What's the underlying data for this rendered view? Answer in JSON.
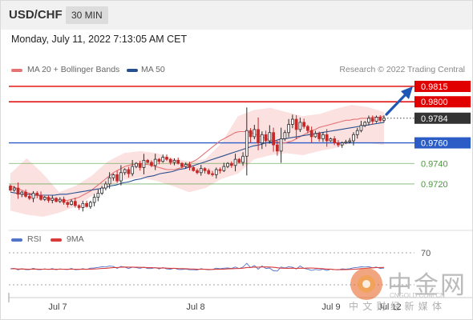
{
  "header": {
    "symbol": "USD/CHF",
    "timeframe": "30 MIN"
  },
  "datetime": "Monday, July 11, 2022 7:13:05 AM CET",
  "legend": {
    "ma20_label": "MA 20 + Bollinger Bands",
    "ma50_label": "MA 50",
    "credit": "Research © 2022 Trading Central"
  },
  "rsi_legend": {
    "rsi_label": "RSI",
    "ma9_label": "9MA"
  },
  "watermark": {
    "cn": "中金网",
    "url": "CNGOLD.COM.CN",
    "tagline": "中 文 财 经 新 媒 体"
  },
  "colors": {
    "up": "#2b2b2b",
    "down": "#c62828",
    "resistance": "#e00000",
    "pivot": "#2c5cc5",
    "support": "#4a9a3a",
    "ma20": "#e57373",
    "ma50": "#2a4f8f",
    "band_fill": "#fbe1e0",
    "rsi": "#4f74c8",
    "rsi_ma": "#d93a3a",
    "arrow": "#1f57b5"
  },
  "chart_data": {
    "type": "candlestick",
    "instrument": "USD/CHF",
    "timeframe": "30 MIN",
    "x_ticks": [
      "Jul 7",
      "Jul 8",
      "Jul 9",
      "Jul 12"
    ],
    "y_range": [
      0.9688,
      0.9822
    ],
    "levels": [
      {
        "value": 0.9815,
        "label": "0.9815",
        "kind": "resistance"
      },
      {
        "value": 0.98,
        "label": "0.9800",
        "kind": "resistance"
      },
      {
        "value": 0.9784,
        "label": "0.9784",
        "kind": "last_price"
      },
      {
        "value": 0.976,
        "label": "0.9760",
        "kind": "pivot"
      },
      {
        "value": 0.974,
        "label": "0.9740",
        "kind": "support"
      },
      {
        "value": 0.972,
        "label": "0.9720",
        "kind": "support"
      }
    ],
    "close_path": [
      0.9714,
      0.9716,
      0.971,
      0.9712,
      0.9708,
      0.9706,
      0.9711,
      0.9709,
      0.9705,
      0.9707,
      0.9704,
      0.9706,
      0.9703,
      0.9705,
      0.9702,
      0.97,
      0.9703,
      0.9699,
      0.9697,
      0.9701,
      0.9698,
      0.9702,
      0.9707,
      0.9711,
      0.9716,
      0.972,
      0.9726,
      0.9729,
      0.9723,
      0.9731,
      0.9734,
      0.973,
      0.9737,
      0.974,
      0.9736,
      0.9743,
      0.9741,
      0.9738,
      0.9744,
      0.9742,
      0.9746,
      0.9744,
      0.9741,
      0.9743,
      0.974,
      0.9737,
      0.9739,
      0.9736,
      0.9733,
      0.9731,
      0.9735,
      0.9733,
      0.973,
      0.9729,
      0.9734,
      0.9733,
      0.9737,
      0.974,
      0.9738,
      0.9744,
      0.9741,
      0.9747,
      0.9772,
      0.9766,
      0.9773,
      0.976,
      0.9768,
      0.9762,
      0.977,
      0.9758,
      0.9752,
      0.9764,
      0.977,
      0.9778,
      0.9783,
      0.9773,
      0.978,
      0.9776,
      0.9772,
      0.9766,
      0.9769,
      0.9764,
      0.9768,
      0.9762,
      0.9764,
      0.976,
      0.9758,
      0.976,
      0.9761,
      0.9762,
      0.9768,
      0.9772,
      0.9777,
      0.978,
      0.9784,
      0.9781,
      0.9785,
      0.9782,
      0.9784
    ],
    "ma20": [
      0.9718,
      0.9717,
      0.9715,
      0.9714,
      0.9712,
      0.9711,
      0.971,
      0.9709,
      0.9708,
      0.9707,
      0.9706,
      0.9705,
      0.9705,
      0.9704,
      0.9704,
      0.9704,
      0.9705,
      0.9706,
      0.9707,
      0.9709,
      0.9711,
      0.9713,
      0.9716,
      0.9719,
      0.9722,
      0.9725,
      0.9728,
      0.9731,
      0.9733,
      0.9735,
      0.9737,
      0.9738,
      0.9739,
      0.9739,
      0.974,
      0.9739,
      0.9739,
      0.9738,
      0.9737,
      0.9736,
      0.9735,
      0.9734,
      0.9734,
      0.9734,
      0.9735,
      0.9736,
      0.9738,
      0.974,
      0.9742,
      0.9744,
      0.9747,
      0.975,
      0.9753,
      0.9756,
      0.9759,
      0.9762,
      0.9764,
      0.9766,
      0.9768,
      0.977,
      0.9771,
      0.9771,
      0.9771,
      0.977,
      0.9769,
      0.9767,
      0.9766,
      0.9764,
      0.9763,
      0.9762,
      0.9761,
      0.976,
      0.976,
      0.9761,
      0.9762,
      0.9764,
      0.9766,
      0.9768,
      0.977,
      0.9772,
      0.9773,
      0.9775,
      0.9776,
      0.9777,
      0.9778,
      0.9779,
      0.978,
      0.9781,
      0.9782,
      0.9782,
      0.9783,
      0.9783,
      0.9784,
      0.9784,
      0.9784,
      0.9785,
      0.9785,
      0.9785,
      0.9786
    ],
    "ma50": [
      0.9712,
      0.9711,
      0.971,
      0.971,
      0.9709,
      0.9709,
      0.9709,
      0.9709,
      0.971,
      0.971,
      0.9711,
      0.9712,
      0.9713,
      0.9714,
      0.9715,
      0.9716,
      0.9718,
      0.9719,
      0.9721,
      0.9722,
      0.9724,
      0.9725,
      0.9727,
      0.9728,
      0.973,
      0.9731,
      0.9732,
      0.9734,
      0.9735,
      0.9737,
      0.9739,
      0.9741,
      0.9743,
      0.9745,
      0.9747,
      0.9749,
      0.9751,
      0.9753,
      0.9755,
      0.9757,
      0.9758,
      0.976,
      0.9761,
      0.9763,
      0.9764,
      0.9765,
      0.9766,
      0.9767,
      0.9768,
      0.9769,
      0.977,
      0.9771,
      0.9772,
      0.9773,
      0.9774,
      0.9775,
      0.9776,
      0.9777,
      0.9778,
      0.9779,
      0.978
    ],
    "band_upper": [
      0.973,
      0.9745,
      0.973,
      0.9712,
      0.9718,
      0.9728,
      0.9742,
      0.975,
      0.9752,
      0.975,
      0.9745,
      0.9742,
      0.9744,
      0.976,
      0.9786,
      0.9792,
      0.9794,
      0.979,
      0.9786,
      0.9788,
      0.9793,
      0.9797,
      0.9795,
      0.979
    ],
    "band_lower": [
      0.9694,
      0.969,
      0.9688,
      0.9692,
      0.9698,
      0.9708,
      0.9718,
      0.9724,
      0.9726,
      0.9723,
      0.9718,
      0.9712,
      0.9716,
      0.9725,
      0.973,
      0.9744,
      0.9748,
      0.975,
      0.9748,
      0.9752,
      0.9755,
      0.976,
      0.976,
      0.9758
    ],
    "rsi_reference": 70,
    "rsi_ma_reference": 30
  }
}
